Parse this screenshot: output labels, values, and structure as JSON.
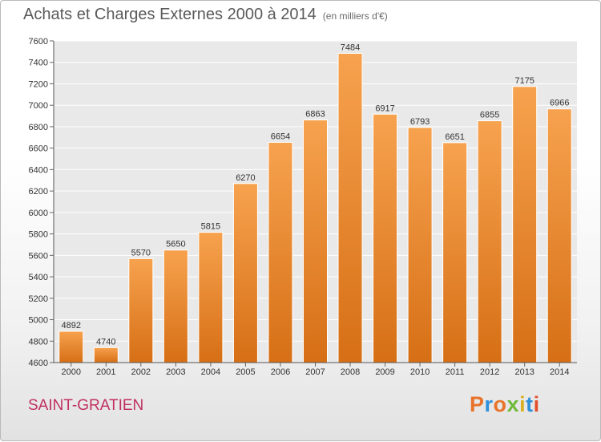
{
  "chart_data": {
    "type": "bar",
    "title": "Achats et Charges Externes 2000 à 2014",
    "subtitle": "(en milliers d'€)",
    "categories": [
      "2000",
      "2001",
      "2002",
      "2003",
      "2004",
      "2005",
      "2006",
      "2007",
      "2008",
      "2009",
      "2010",
      "2011",
      "2012",
      "2013",
      "2014"
    ],
    "values": [
      4892,
      4740,
      5570,
      5650,
      5815,
      6270,
      6654,
      6863,
      7484,
      6917,
      6793,
      6651,
      6855,
      7175,
      6966
    ],
    "ylim": [
      4600,
      7600
    ],
    "yticks": [
      4600,
      4800,
      5000,
      5200,
      5400,
      5600,
      5800,
      6000,
      6200,
      6400,
      6600,
      6800,
      7000,
      7200,
      7400,
      7600
    ],
    "grid": true,
    "bar_color_light": "#f7a24f",
    "bar_color_dark": "#d66f15"
  },
  "footer": {
    "place": "SAINT-GRATIEN",
    "brand_letters": [
      "P",
      "r",
      "o",
      "x",
      "i",
      "t",
      "i"
    ],
    "brand_colors": [
      "#e8732a",
      "#2f8fd8",
      "#e8732a",
      "#6fb93a",
      "#d8b020",
      "#2f8fd8",
      "#e34f2c"
    ]
  }
}
